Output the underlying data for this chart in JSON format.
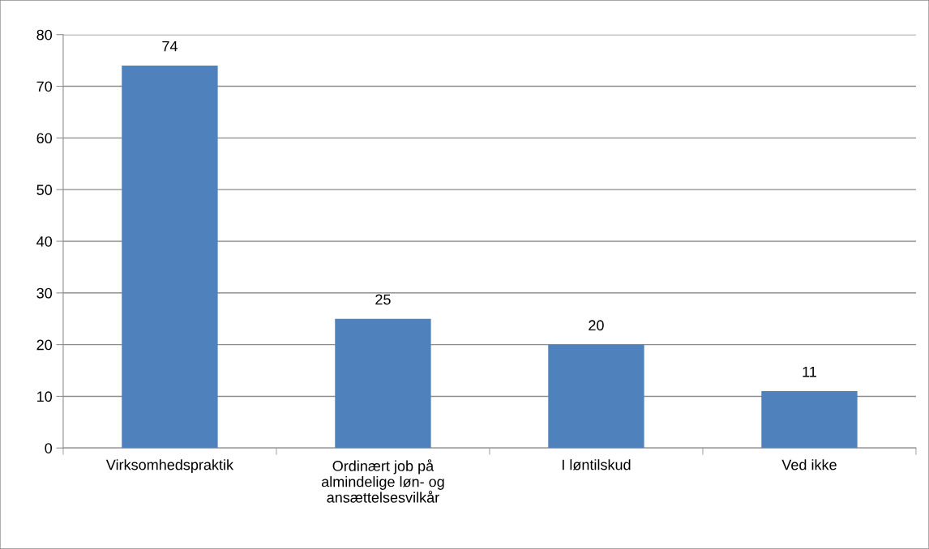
{
  "chart_data": {
    "type": "bar",
    "categories": [
      "Virksomhedspraktik",
      "Ordinært job på\nalmindelige løn- og\nansættelsesvilkår",
      "I løntilskud",
      "Ved ikke"
    ],
    "values": [
      74,
      25,
      20,
      11
    ],
    "color": "#4f81bd",
    "ylim": [
      0,
      80
    ],
    "yticks": [
      0,
      10,
      20,
      30,
      40,
      50,
      60,
      70,
      80
    ],
    "grid": "y",
    "data_labels": true,
    "legend": false
  }
}
